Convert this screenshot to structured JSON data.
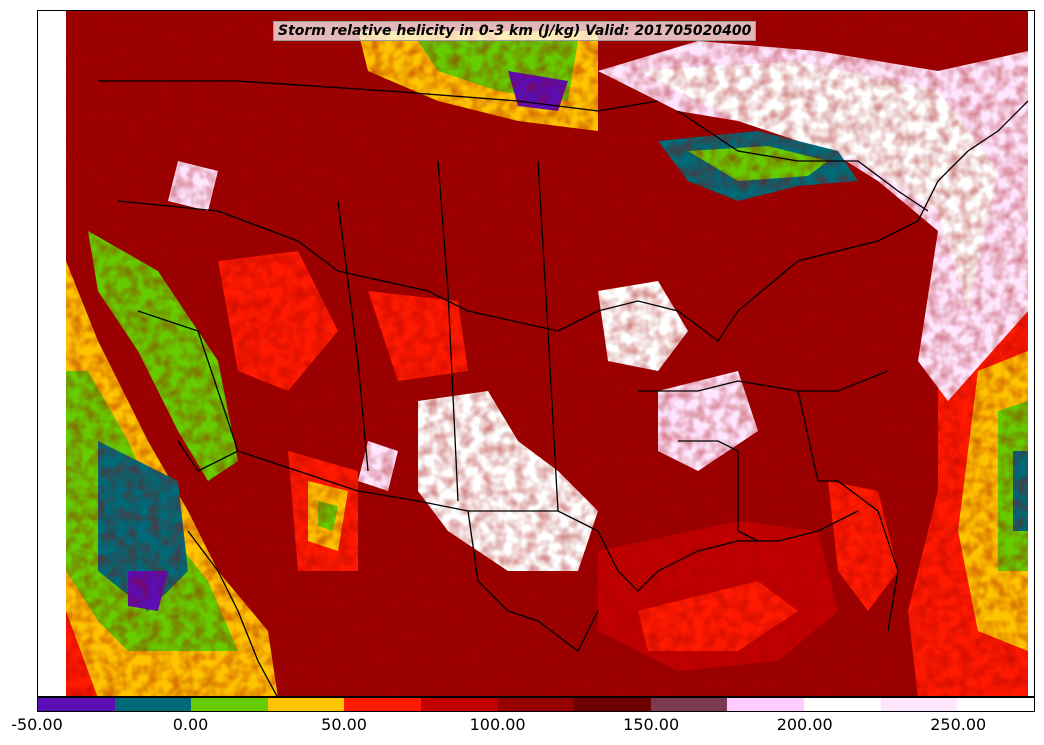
{
  "map": {
    "title": "Storm relative helicity in 0-3 km (J/kg) Valid: 201705020400",
    "region": "contiguous-united-states",
    "colorbar": {
      "min": -50,
      "max": 275,
      "step": 25,
      "colors": [
        "#5a0eb4",
        "#006a78",
        "#66cc00",
        "#ffc400",
        "#ff1a00",
        "#c20000",
        "#960000",
        "#6e0000",
        "#7a3a52",
        "#ffccff",
        "#ffffff",
        "#ffe6ff",
        "#ffffff"
      ],
      "tick_values": [
        -50,
        0,
        50,
        100,
        150,
        200,
        250
      ],
      "tick_labels": [
        "-50.00",
        "0.00",
        "50.00",
        "100.00",
        "150.00",
        "200.00",
        "250.00"
      ]
    }
  }
}
